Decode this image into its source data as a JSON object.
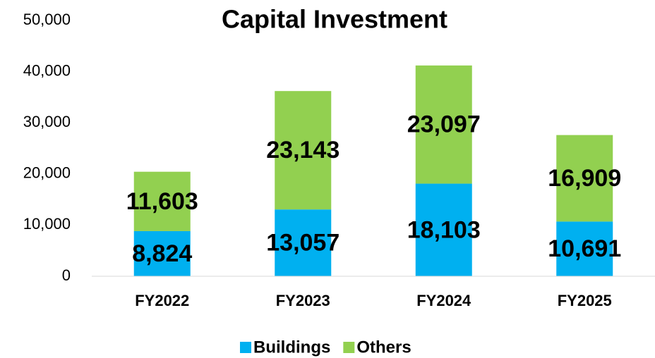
{
  "chart_data": {
    "type": "stacked_bar",
    "title": "Capital Investment",
    "categories": [
      "FY2022",
      "FY2023",
      "FY2024",
      "FY2025"
    ],
    "series": [
      {
        "name": "Buildings",
        "color": "#00b0f0",
        "values": [
          8824,
          13057,
          18103,
          10691
        ],
        "value_labels": [
          "8,824",
          "13,057",
          "18,103",
          "10,691"
        ]
      },
      {
        "name": "Others",
        "color": "#92d050",
        "values": [
          11603,
          23143,
          23097,
          16909
        ],
        "value_labels": [
          "11,603",
          "23,143",
          "23,097",
          "16,909"
        ]
      }
    ],
    "ylim": [
      0,
      50000
    ],
    "yticks": [
      0,
      {
        "value": 10000,
        "label": "10,000"
      },
      {
        "value": 20000,
        "label": "20,000"
      },
      {
        "value": 30000,
        "label": "30,000"
      },
      {
        "value": 40000,
        "label": "40,000"
      },
      {
        "value": 50000,
        "label": "50,000"
      }
    ],
    "grid": false,
    "legend": "bottom"
  }
}
